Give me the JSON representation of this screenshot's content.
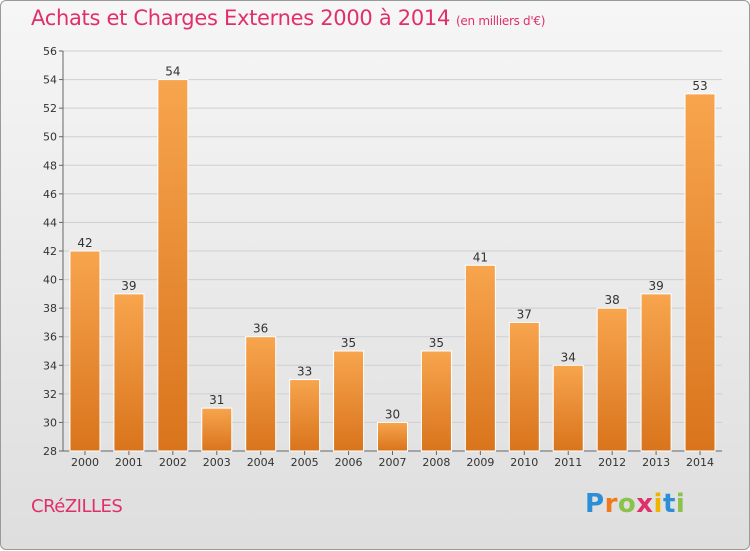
{
  "title": "Achats et Charges Externes 2000 à 2014",
  "unit_note": "(en milliers d'€)",
  "commune": "CRéZILLES",
  "logo": {
    "letters": [
      "P",
      "r",
      "o",
      "x",
      "i",
      "t",
      "i"
    ],
    "colors": [
      "#2a8fd6",
      "#f07a1a",
      "#8bc34a",
      "#e0306a",
      "#f0b400",
      "#2a8fd6",
      "#8bc34a"
    ]
  },
  "colors": {
    "title": "#e0306a",
    "bar_light": "#f7a54e",
    "bar_dark": "#d9741c"
  },
  "chart_data": {
    "type": "bar",
    "categories": [
      "2000",
      "2001",
      "2002",
      "2003",
      "2004",
      "2005",
      "2006",
      "2007",
      "2008",
      "2009",
      "2010",
      "2011",
      "2012",
      "2013",
      "2014"
    ],
    "values": [
      42,
      39,
      54,
      31,
      36,
      33,
      35,
      30,
      35,
      41,
      37,
      34,
      38,
      39,
      53
    ],
    "ylim": [
      28,
      56
    ],
    "yticks": [
      28,
      30,
      32,
      34,
      36,
      38,
      40,
      42,
      44,
      46,
      48,
      50,
      52,
      54,
      56
    ],
    "grid": true,
    "data_labels": true
  }
}
